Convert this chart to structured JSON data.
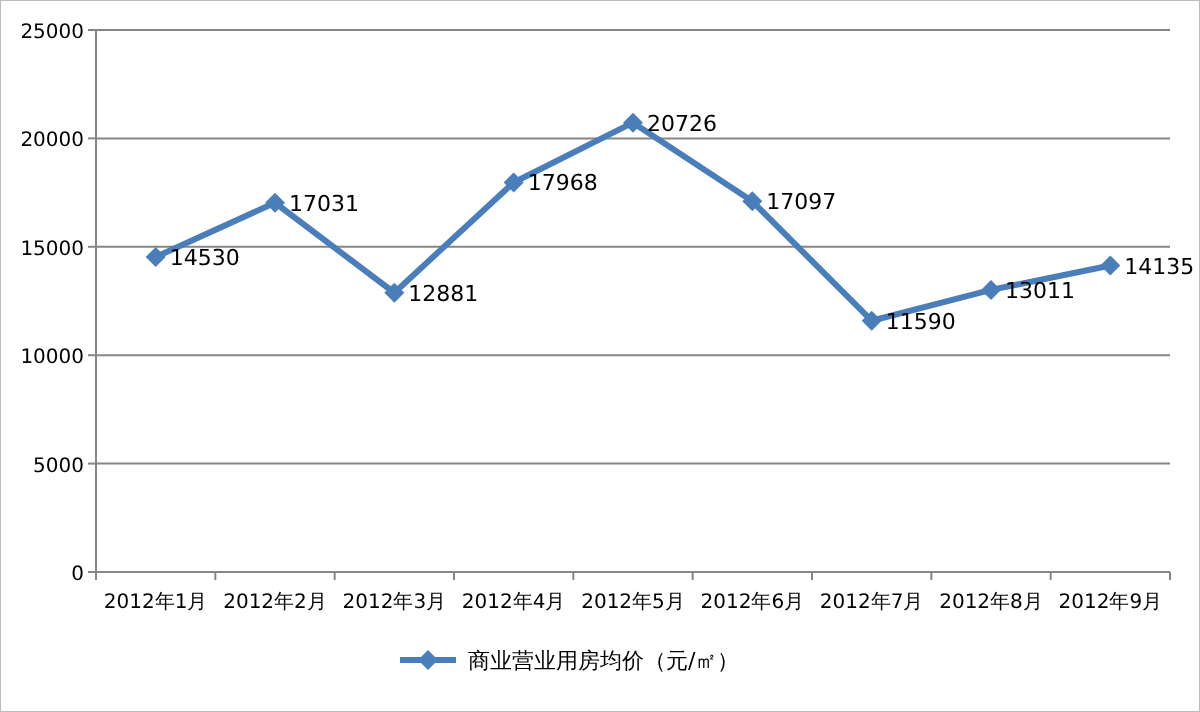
{
  "chart_data": {
    "type": "line",
    "categories": [
      "2012年1月",
      "2012年2月",
      "2012年3月",
      "2012年4月",
      "2012年5月",
      "2012年6月",
      "2012年7月",
      "2012年8月",
      "2012年9月"
    ],
    "series": [
      {
        "name": "商业营业用房均价（元/㎡）",
        "color": "#4a7ebb",
        "values": [
          14530,
          17031,
          12881,
          17968,
          20726,
          17097,
          11590,
          13011,
          14135
        ]
      }
    ],
    "ylim": [
      0,
      25000
    ],
    "yticks": [
      0,
      5000,
      10000,
      15000,
      20000,
      25000
    ],
    "grid": "y",
    "legend": "bottom",
    "marker": "diamond",
    "data_labels": true
  }
}
